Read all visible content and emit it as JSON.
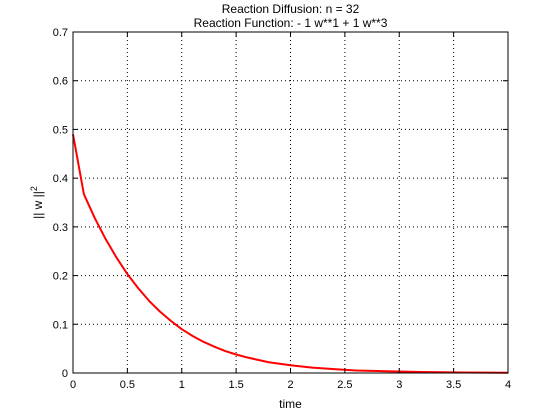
{
  "chart_data": {
    "type": "line",
    "title_lines": [
      "Reaction Diffusion: n = 32",
      "Reaction Function:  - 1 w**1 + 1 w**3"
    ],
    "xlabel": "time",
    "ylabel": "|| w ||",
    "ylabel_superscript": "2",
    "xlim": [
      0,
      4
    ],
    "ylim": [
      0,
      0.7
    ],
    "x_ticks": [
      0,
      0.5,
      1,
      1.5,
      2,
      2.5,
      3,
      3.5,
      4
    ],
    "x_tick_labels": [
      "0",
      "0.5",
      "1",
      "1.5",
      "2",
      "2.5",
      "3",
      "3.5",
      "4"
    ],
    "y_ticks": [
      0,
      0.1,
      0.2,
      0.3,
      0.4,
      0.5,
      0.6,
      0.7
    ],
    "y_tick_labels": [
      "0",
      "0.1",
      "0.2",
      "0.3",
      "0.4",
      "0.5",
      "0.6",
      "0.7"
    ],
    "grid": true,
    "grid_style": "dotted",
    "series": [
      {
        "color": "#ff0000",
        "x": [
          0,
          0.1,
          0.2,
          0.3,
          0.4,
          0.5,
          0.6,
          0.7,
          0.8,
          0.9,
          1.0,
          1.1,
          1.2,
          1.3,
          1.4,
          1.5,
          1.6,
          1.7,
          1.8,
          1.9,
          2.0,
          2.2,
          2.4,
          2.6,
          2.8,
          3.0,
          3.2,
          3.4,
          3.6,
          3.8,
          4.0
        ],
        "y": [
          0.49,
          0.367,
          0.318,
          0.275,
          0.237,
          0.203,
          0.174,
          0.148,
          0.126,
          0.107,
          0.09,
          0.076,
          0.064,
          0.054,
          0.045,
          0.038,
          0.032,
          0.027,
          0.022,
          0.019,
          0.016,
          0.011,
          0.008,
          0.005,
          0.004,
          0.003,
          0.002,
          0.0015,
          0.001,
          0.0008,
          0.0006
        ]
      }
    ]
  }
}
